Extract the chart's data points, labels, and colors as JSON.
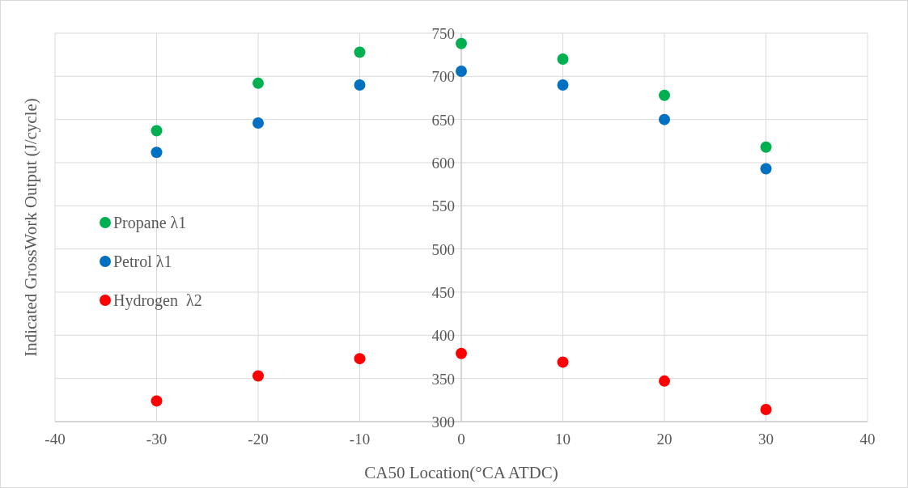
{
  "chart_data": {
    "type": "scatter",
    "xlabel": "CA50 Location(°CA ATDC)",
    "ylabel": "Indicated GrossWork Output (J/cycle)",
    "x": [
      -30,
      -20,
      -10,
      0,
      10,
      20,
      30
    ],
    "series": [
      {
        "name": "Propane λ1",
        "color": "#00b050",
        "values": [
          637,
          692,
          728,
          738,
          720,
          678,
          618
        ]
      },
      {
        "name": "Petrol λ1",
        "color": "#0070c0",
        "values": [
          612,
          646,
          690,
          706,
          690,
          650,
          593
        ]
      },
      {
        "name": "Hydrogen  λ2",
        "color": "#ff0000",
        "values": [
          324,
          353,
          373,
          379,
          369,
          347,
          314
        ]
      }
    ],
    "xlim": [
      -40,
      40
    ],
    "xticks": [
      -40,
      -30,
      -20,
      -10,
      0,
      10,
      20,
      30,
      40
    ],
    "ylim": [
      300,
      750
    ],
    "yticks": [
      300,
      350,
      400,
      450,
      500,
      550,
      600,
      650,
      700,
      750
    ],
    "grid": true,
    "legend": "left",
    "marker": "circle"
  }
}
